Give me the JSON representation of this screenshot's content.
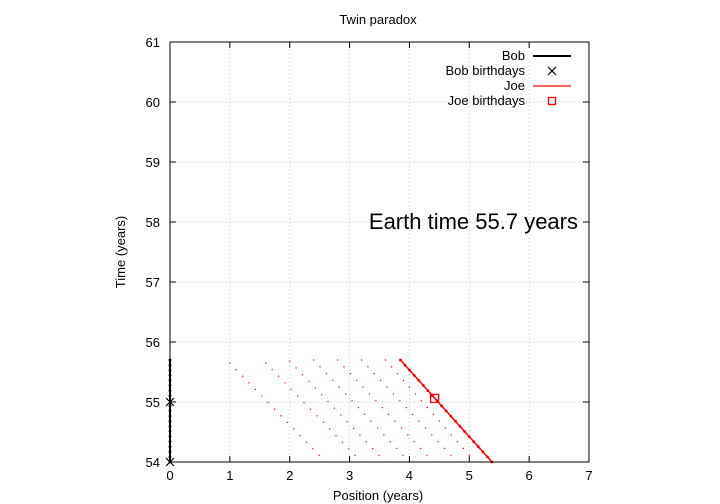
{
  "chart_data": {
    "type": "line",
    "title": "Twin paradox",
    "xlabel": "Position (years)",
    "ylabel": "Time (years)",
    "xlim": [
      0,
      7
    ],
    "ylim": [
      54,
      61
    ],
    "xticks": [
      "0",
      "1",
      "2",
      "3",
      "4",
      "5",
      "6",
      "7"
    ],
    "yticks": [
      "54",
      "55",
      "56",
      "57",
      "58",
      "59",
      "60",
      "61"
    ],
    "grid": true,
    "legend_position": "top-right",
    "annotation": "Earth time 55.7 years",
    "colors": {
      "bob": "#000000",
      "joe": "#ff0000"
    },
    "series": [
      {
        "name": "Bob",
        "style": "line",
        "x": [
          0,
          0
        ],
        "y": [
          54,
          55.7
        ]
      },
      {
        "name": "Bob birthdays",
        "style": "cross",
        "x": [
          0,
          0
        ],
        "y": [
          54,
          55
        ]
      },
      {
        "name": "Joe",
        "style": "line",
        "x": [
          3.85,
          5.38
        ],
        "y": [
          55.7,
          54
        ]
      },
      {
        "name": "Joe birthdays",
        "style": "square",
        "x": [
          4.42
        ],
        "y": [
          55.06
        ]
      }
    ],
    "trail": {
      "comment_free_ghost_lines": [
        {
          "x": [
            1.0,
            2.6
          ],
          "y": [
            55.65,
            54
          ]
        },
        {
          "x": [
            1.6,
            3.2
          ],
          "y": [
            55.65,
            54
          ]
        },
        {
          "x": [
            2.0,
            3.6
          ],
          "y": [
            55.68,
            54
          ]
        },
        {
          "x": [
            2.4,
            4.0
          ],
          "y": [
            55.7,
            54
          ]
        },
        {
          "x": [
            2.8,
            4.4
          ],
          "y": [
            55.7,
            54
          ]
        },
        {
          "x": [
            3.2,
            4.8
          ],
          "y": [
            55.7,
            54
          ]
        },
        {
          "x": [
            3.6,
            5.1
          ],
          "y": [
            55.7,
            54
          ]
        }
      ]
    }
  }
}
